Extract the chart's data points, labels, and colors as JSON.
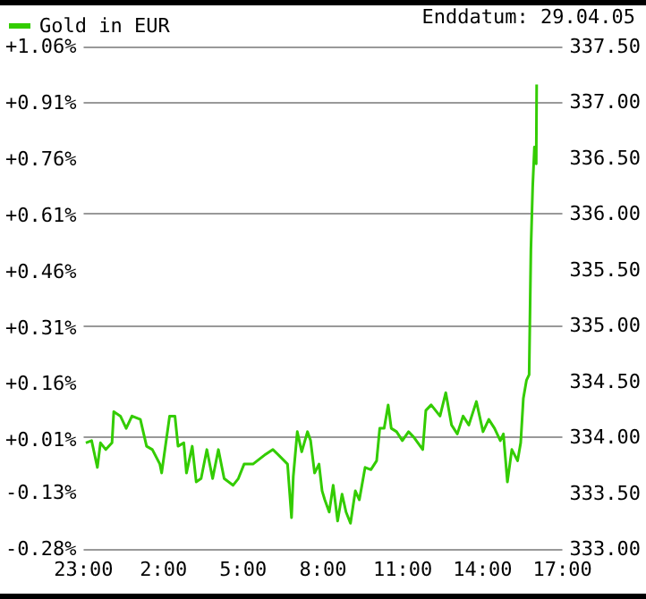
{
  "chart_data": {
    "type": "line",
    "x": [
      "--04-28T23:05",
      "--04-28T23:18",
      "--04-28T23:31",
      "--04-28T23:38",
      "--04-28T23:50",
      "--04-29T00:04",
      "--04-29T00:08",
      "--04-29T00:23",
      "--04-29T00:36",
      "--04-29T00:49",
      "--04-29T01:08",
      "--04-29T01:22",
      "--04-29T01:35",
      "--04-29T01:52",
      "--04-29T01:56",
      "--04-29T02:14",
      "--04-29T02:26",
      "--04-29T02:33",
      "--04-29T02:46",
      "--04-29T02:52",
      "--04-29T03:05",
      "--04-29T03:14",
      "--04-29T03:25",
      "--04-29T03:38",
      "--04-29T03:51",
      "--04-29T04:04",
      "--04-29T04:17",
      "--04-29T04:37",
      "--04-29T04:49",
      "--04-29T05:02",
      "--04-29T05:22",
      "--04-29T05:48",
      "--04-29T06:07",
      "--04-29T06:20",
      "--04-29T06:40",
      "--04-29T06:49",
      "--04-29T06:53",
      "--04-29T07:02",
      "--04-29T07:12",
      "--04-29T07:25",
      "--04-29T07:32",
      "--04-29T07:41",
      "--04-29T07:51",
      "--04-29T07:58",
      "--04-29T08:04",
      "--04-29T08:14",
      "--04-29T08:23",
      "--04-29T08:33",
      "--04-29T08:43",
      "--04-29T08:52",
      "--04-29T09:02",
      "--04-29T09:13",
      "--04-29T09:22",
      "--04-29T09:35",
      "--04-29T09:48",
      "--04-29T10:01",
      "--04-29T10:08",
      "--04-29T10:18",
      "--04-29T10:27",
      "--04-29T10:34",
      "--04-29T10:46",
      "--04-29T10:59",
      "--04-29T11:13",
      "--04-29T11:25",
      "--04-29T11:45",
      "--04-29T11:52",
      "--04-29T12:04",
      "--04-29T12:24",
      "--04-29T12:37",
      "--04-29T12:50",
      "--04-29T13:03",
      "--04-29T13:16",
      "--04-29T13:29",
      "--04-29T13:46",
      "--04-29T14:01",
      "--04-29T14:14",
      "--04-29T14:27",
      "--04-29T14:40",
      "--04-29T14:47",
      "--04-29T14:56",
      "--04-29T15:06",
      "--04-29T15:19",
      "--04-29T15:26",
      "--04-29T15:32",
      "--04-29T15:39",
      "--04-29T15:45",
      "--04-29T15:49",
      "--04-29T15:53",
      "--04-29T15:57",
      "--04-29T16:01",
      "--04-29T16:02"
    ],
    "series": [
      {
        "name": "Gold in EUR",
        "color": "#33cc00",
        "axis": "y2",
        "values": [
          333.95,
          333.97,
          333.73,
          333.95,
          333.89,
          333.95,
          334.23,
          334.19,
          334.08,
          334.19,
          334.16,
          333.92,
          333.89,
          333.76,
          333.68,
          334.19,
          334.19,
          333.92,
          333.95,
          333.68,
          333.92,
          333.6,
          333.63,
          333.89,
          333.63,
          333.89,
          333.63,
          333.57,
          333.63,
          333.76,
          333.76,
          333.84,
          333.89,
          333.84,
          333.76,
          333.28,
          333.65,
          334.05,
          333.87,
          334.05,
          333.97,
          333.68,
          333.76,
          333.52,
          333.44,
          333.33,
          333.57,
          333.25,
          333.49,
          333.33,
          333.23,
          333.52,
          333.44,
          333.73,
          333.71,
          333.79,
          334.08,
          334.08,
          334.29,
          334.08,
          334.05,
          333.97,
          334.05,
          334.0,
          333.89,
          334.24,
          334.29,
          334.19,
          334.4,
          334.11,
          334.03,
          334.19,
          334.11,
          334.32,
          334.05,
          334.16,
          334.08,
          333.97,
          334.03,
          333.6,
          333.89,
          333.79,
          333.95,
          334.35,
          334.51,
          334.56,
          335.68,
          336.24,
          336.6,
          336.45,
          337.16
        ]
      }
    ],
    "xlim": [
      "--04-28T23:00",
      "--04-29T17:00"
    ],
    "xticks": [
      {
        "value": "--04-28T23:00",
        "label": "23:00"
      },
      {
        "value": "--04-29T02:00",
        "label": "2:00"
      },
      {
        "value": "--04-29T05:00",
        "label": "5:00"
      },
      {
        "value": "--04-29T08:00",
        "label": "8:00"
      },
      {
        "value": "--04-29T11:00",
        "label": "11:00"
      },
      {
        "value": "--04-29T14:00",
        "label": "14:00"
      },
      {
        "value": "--04-29T17:00",
        "label": "17:00"
      }
    ],
    "ylim": [
      -0.28,
      1.06
    ],
    "yticks": [
      {
        "value": -0.28,
        "label": "-0.28%"
      },
      {
        "value": -0.13,
        "label": "-0.13%"
      },
      {
        "value": 0.01,
        "label": "+0.01%"
      },
      {
        "value": 0.16,
        "label": "+0.16%"
      },
      {
        "value": 0.31,
        "label": "+0.31%"
      },
      {
        "value": 0.46,
        "label": "+0.46%"
      },
      {
        "value": 0.61,
        "label": "+0.61%"
      },
      {
        "value": 0.76,
        "label": "+0.76%"
      },
      {
        "value": 0.91,
        "label": "+0.91%"
      },
      {
        "value": 1.06,
        "label": "+1.06%"
      }
    ],
    "y2lim": [
      333,
      337.5
    ],
    "y2ticks": [
      {
        "value": 333,
        "label": "333.00"
      },
      {
        "value": 333.5,
        "label": "333.50"
      },
      {
        "value": 334,
        "label": "334.00"
      },
      {
        "value": 334.5,
        "label": "334.50"
      },
      {
        "value": 335,
        "label": "335.00"
      },
      {
        "value": 335.5,
        "label": "335.50"
      },
      {
        "value": 336,
        "label": "336.00"
      },
      {
        "value": 336.5,
        "label": "336.50"
      },
      {
        "value": 337,
        "label": "337.00"
      },
      {
        "value": 337.5,
        "label": "337.50"
      }
    ],
    "grid": "y",
    "legend": "top left",
    "marker": "none",
    "line_style": "solid",
    "annotations": [
      "Enddatum: 29.04.05"
    ]
  }
}
